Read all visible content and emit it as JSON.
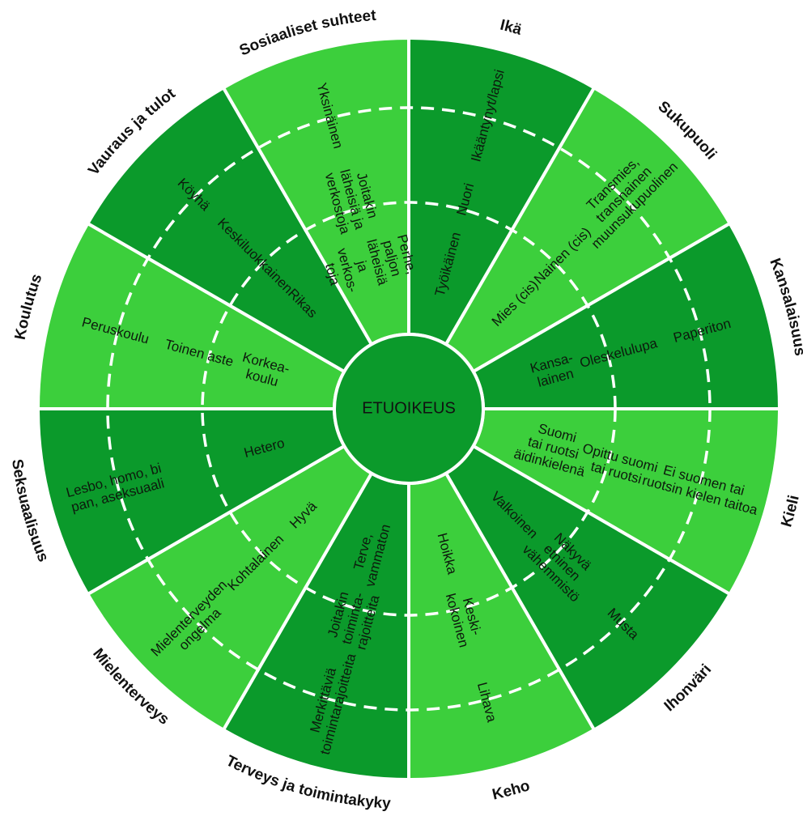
{
  "center_label": "ETUOIKEUS",
  "colors": {
    "dark": "#0b9a2b",
    "light": "#3ccf3c",
    "center": "#0b9a2b",
    "divider": "#ffffff"
  },
  "segments": [
    {
      "category": "Ikä",
      "shade": "dark",
      "rings": [
        "Työikäinen",
        "Nuori",
        "Ikääntynyt/lapsi"
      ]
    },
    {
      "category": "Sukupuoli",
      "shade": "light",
      "rings": [
        "Mies (cis)",
        "Nainen (cis)",
        "Transmies,\ntransnainen\nmuunsukupuolinen"
      ]
    },
    {
      "category": "Kansalaisuus",
      "shade": "dark",
      "rings": [
        "Kansa-\nlainen",
        "Oleskelulupa",
        "Paperiton"
      ]
    },
    {
      "category": "Kieli",
      "shade": "light",
      "rings": [
        "Suomi\ntai ruotsi\näidinkielenä",
        "Opittu suomi\ntai ruotsi",
        "Ei suomen tai\nruotsin kielen taitoa"
      ]
    },
    {
      "category": "Ihonväri",
      "shade": "dark",
      "rings": [
        "Valkoinen",
        "Näkyvä\netninen\nvähemmistö",
        "Musta"
      ]
    },
    {
      "category": "Keho",
      "shade": "light",
      "rings": [
        "Hoikka",
        "Keski-\nkokoinen",
        "Lihava"
      ]
    },
    {
      "category": "Terveys ja toimintakyky",
      "shade": "dark",
      "rings": [
        "Terve,\nvammaton",
        "Joitakin\ntoiminta-\nrajoitteita",
        "Merkittäviä\ntoimintarajoitteita"
      ]
    },
    {
      "category": "Mielenterveys",
      "shade": "light",
      "rings": [
        "Hyvä",
        "Kohtalainen",
        "Mielenterveyden\nongelma"
      ]
    },
    {
      "category": "Seksuaalisuus",
      "shade": "dark",
      "rings": [
        "Hetero",
        "",
        "Lesbo, homo, bi\npan, aseksuaali"
      ]
    },
    {
      "category": "Koulutus",
      "shade": "light",
      "rings": [
        "Korkea-\nkoulu",
        "Toinen aste",
        "Peruskoulu"
      ]
    },
    {
      "category": "Vauraus ja tulot",
      "shade": "dark",
      "rings": [
        "Rikas",
        "Keskiluokkainen",
        "Köyhä"
      ]
    },
    {
      "category": "Sosiaaliset suhteet",
      "shade": "light",
      "rings": [
        "Perhe,\npaljon\nläheisiä\nja\nverkos-\ntoja",
        "Joitakin\nläheisiä ja\nverkostoja",
        "Yksinäinen"
      ]
    }
  ]
}
